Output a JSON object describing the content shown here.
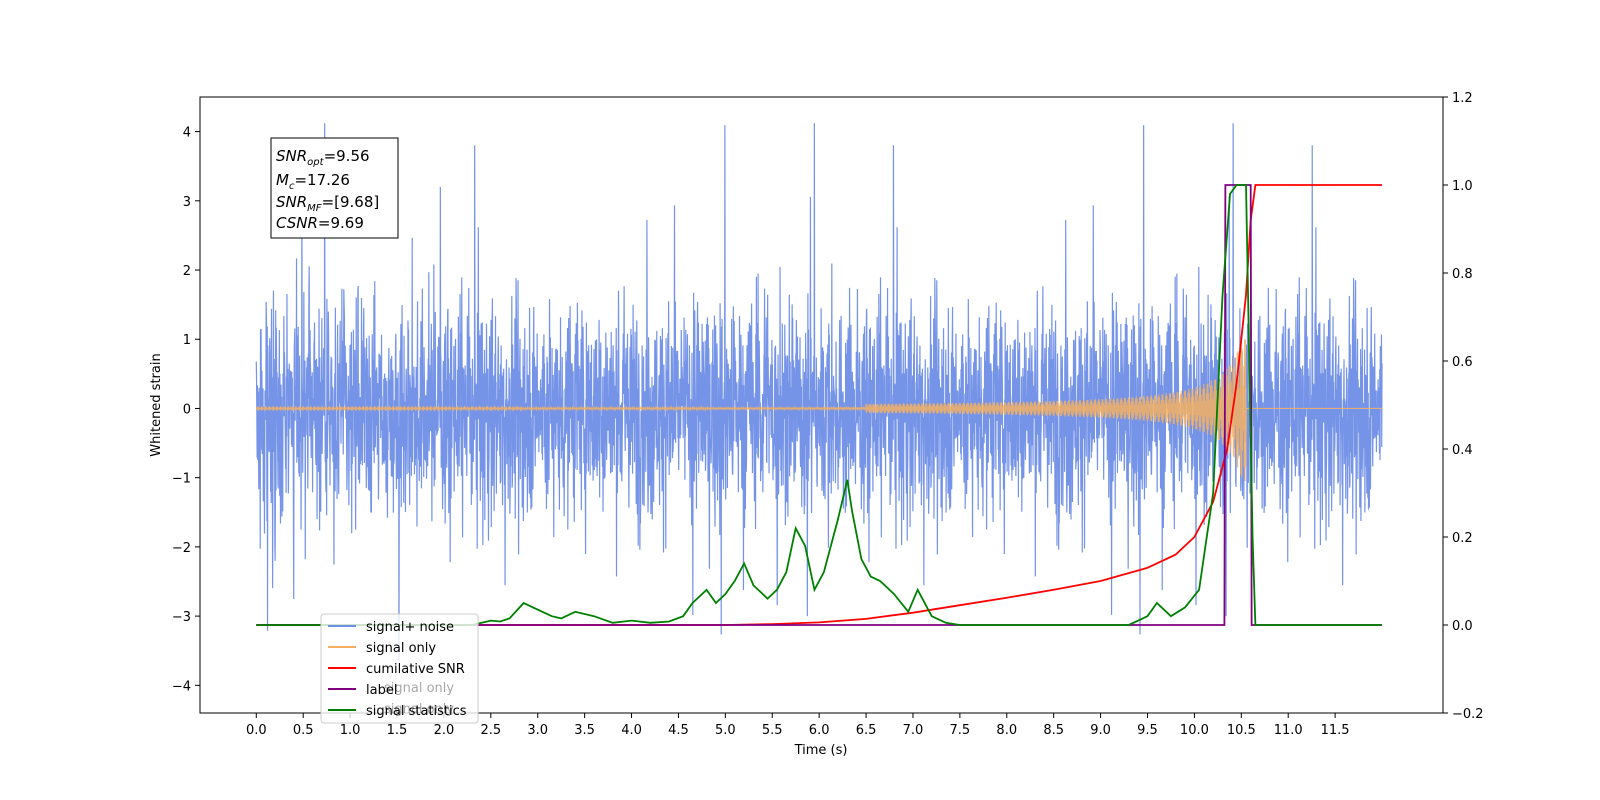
{
  "chart_data": {
    "type": "line",
    "xlabel": "Time (s)",
    "ylabel": "Whitened strain",
    "xlim": [
      -0.6,
      12.65
    ],
    "ylim": [
      -4.4,
      4.5
    ],
    "y2lim": [
      -0.2,
      1.2
    ],
    "x_ticks": [
      "0.0",
      "0.5",
      "1.0",
      "1.5",
      "2.0",
      "2.5",
      "3.0",
      "3.5",
      "4.0",
      "4.5",
      "5.0",
      "5.5",
      "6.0",
      "6.5",
      "7.0",
      "7.5",
      "8.0",
      "8.5",
      "9.0",
      "9.5",
      "10.0",
      "10.5",
      "11.0",
      "11.5"
    ],
    "y_ticks": [
      "4",
      "3",
      "2",
      "1",
      "0",
      "−1",
      "−2",
      "−3",
      "−4"
    ],
    "y2_ticks": [
      "1.2",
      "1.0",
      "0.8",
      "0.6",
      "0.4",
      "0.2",
      "0.0",
      "−0.2"
    ],
    "annotation": {
      "snr_opt": {
        "name": "SNR",
        "sub": "opt",
        "value": "=9.56"
      },
      "mc": {
        "name": "M",
        "sub": "c",
        "value": "=17.26"
      },
      "snr_mf": {
        "name": "SNR",
        "sub": "MF",
        "value": "=[9.68]"
      },
      "csnr": {
        "name": "CSNR",
        "sub": "",
        "value": "=9.69"
      }
    },
    "series": [
      {
        "name": "signal+ noise",
        "color": "#6f8ee6",
        "axis": "left",
        "kind": "noise",
        "x_range": [
          0.0,
          12.0
        ],
        "approx_amplitude": 1.1,
        "range": [
          -3.95,
          4.12
        ]
      },
      {
        "name": "signal only",
        "color": "#f4b060",
        "axis": "left",
        "kind": "chirp",
        "x_range": [
          0.0,
          12.0
        ],
        "peak_x": 10.55,
        "peak_amplitude": 1.05
      },
      {
        "name": "cumilative SNR",
        "color": "#ff0000",
        "axis": "right",
        "x": [
          0.0,
          5.0,
          5.5,
          6.0,
          6.5,
          7.0,
          7.5,
          8.0,
          8.5,
          9.0,
          9.5,
          9.8,
          10.0,
          10.2,
          10.35,
          10.45,
          10.55,
          10.6,
          10.65,
          12.0
        ],
        "values": [
          0.0,
          0.0,
          0.002,
          0.006,
          0.014,
          0.028,
          0.045,
          0.062,
          0.08,
          0.1,
          0.13,
          0.16,
          0.2,
          0.28,
          0.4,
          0.55,
          0.75,
          0.92,
          1.0,
          1.0
        ]
      },
      {
        "name": "label",
        "color": "#800080",
        "axis": "right",
        "x": [
          0.0,
          10.32,
          10.33,
          10.6,
          10.61,
          12.0
        ],
        "values": [
          0.0,
          0.0,
          1.0,
          1.0,
          0.0,
          0.0
        ]
      },
      {
        "name": "signal statistics",
        "color": "#008000",
        "axis": "right",
        "x": [
          0.0,
          2.3,
          2.5,
          2.6,
          2.7,
          2.85,
          2.95,
          3.05,
          3.15,
          3.25,
          3.4,
          3.6,
          3.8,
          4.0,
          4.2,
          4.4,
          4.55,
          4.65,
          4.8,
          4.9,
          5.0,
          5.1,
          5.2,
          5.3,
          5.45,
          5.55,
          5.65,
          5.75,
          5.85,
          5.95,
          6.05,
          6.2,
          6.3,
          6.35,
          6.45,
          6.55,
          6.65,
          6.8,
          6.95,
          7.05,
          7.2,
          7.35,
          7.5,
          9.3,
          9.5,
          9.6,
          9.75,
          9.9,
          10.05,
          10.2,
          10.3,
          10.38,
          10.45,
          10.55,
          10.62,
          10.65,
          12.0
        ],
        "values": [
          0.0,
          0.0,
          0.01,
          0.008,
          0.015,
          0.05,
          0.04,
          0.03,
          0.02,
          0.015,
          0.03,
          0.02,
          0.005,
          0.01,
          0.005,
          0.008,
          0.02,
          0.05,
          0.08,
          0.05,
          0.07,
          0.1,
          0.14,
          0.09,
          0.06,
          0.08,
          0.12,
          0.22,
          0.18,
          0.08,
          0.12,
          0.24,
          0.33,
          0.26,
          0.15,
          0.11,
          0.1,
          0.07,
          0.03,
          0.08,
          0.02,
          0.005,
          0.0,
          0.0,
          0.02,
          0.05,
          0.02,
          0.04,
          0.08,
          0.3,
          0.75,
          0.98,
          1.0,
          1.0,
          0.2,
          0.0,
          0.0
        ]
      }
    ],
    "legend": {
      "placement": "lower-left",
      "entries": [
        {
          "label": "signal+ noise",
          "color": "#6f8ee6"
        },
        {
          "label": "signal only",
          "color": "#f4b060"
        },
        {
          "label": "cumilative SNR",
          "color": "#ff0000"
        },
        {
          "label": "label",
          "color": "#800080"
        },
        {
          "label": "signal statistics",
          "color": "#008000"
        }
      ],
      "ghost_entries": [
        "signal only",
        "signal only"
      ]
    }
  }
}
